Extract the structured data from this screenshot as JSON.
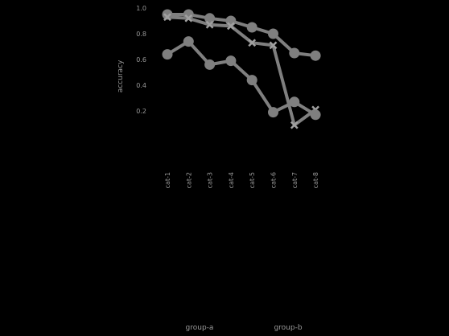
{
  "chart_data": {
    "type": "line",
    "title": "",
    "xlabel": "",
    "ylabel": "accuracy",
    "ylim": [
      0.0,
      1.0
    ],
    "yticks": [
      "0.2",
      "0.4",
      "0.6",
      "0.8",
      "1.0"
    ],
    "categories": [
      "cat-1",
      "cat-2",
      "cat-3",
      "cat-4",
      "cat-5",
      "cat-6",
      "cat-7",
      "cat-8"
    ],
    "groups": [
      "group-a",
      "group-b"
    ],
    "series": [
      {
        "values": [
          0.95,
          0.95,
          0.92,
          0.9,
          0.85,
          0.8,
          0.65,
          0.63
        ],
        "marker": "circle"
      },
      {
        "values": [
          0.93,
          0.92,
          0.87,
          0.86,
          0.73,
          0.71,
          0.09,
          0.21
        ],
        "marker": "x"
      },
      {
        "values": [
          0.64,
          0.74,
          0.56,
          0.59,
          0.44,
          0.19,
          0.27,
          0.17
        ],
        "marker": "circle"
      }
    ],
    "colors": {
      "line": "#7f7f7f",
      "text": "#9a9a9a",
      "background": "#000000"
    },
    "grid": false,
    "legend": "none"
  }
}
